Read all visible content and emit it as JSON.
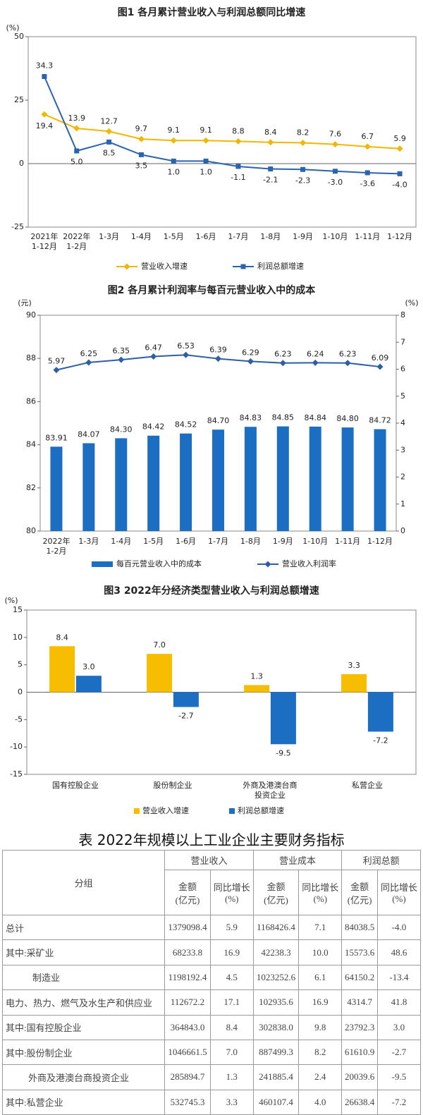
{
  "chart_data": [
    {
      "type": "line",
      "title": "图1  各月累计营业收入与利润总额同比增速",
      "ylabel": "(%)",
      "categories": [
        "2021年\n1-12月",
        "2022年\n1-2月",
        "1-3月",
        "1-4月",
        "1-5月",
        "1-6月",
        "1-7月",
        "1-8月",
        "1-9月",
        "1-10月",
        "1-11月",
        "1-12月"
      ],
      "ylim": [
        -25,
        50
      ],
      "yticks": [
        -25,
        0,
        25,
        50
      ],
      "grid": false,
      "series": [
        {
          "name": "营业收入增速",
          "type": "line",
          "color": "#f2b705",
          "values": [
            19.4,
            13.9,
            12.7,
            9.7,
            9.1,
            9.1,
            8.8,
            8.4,
            8.2,
            7.6,
            6.7,
            5.9
          ]
        },
        {
          "name": "利润总额增速",
          "type": "line",
          "color": "#2a63ae",
          "values": [
            34.3,
            5.0,
            8.5,
            3.5,
            1.0,
            1.0,
            -1.1,
            -2.1,
            -2.3,
            -3.0,
            -3.6,
            -4.0
          ],
          "value_labels": [
            "34.3",
            "5.0",
            "8.5",
            "3.5",
            "1.0",
            "1.0",
            "-1.1",
            "-2.1",
            "-2.3",
            "-3.0",
            "-3.6",
            "-4.0"
          ]
        }
      ]
    },
    {
      "type": "bar",
      "title": "图2  各月累计利润率与每百元营业收入中的成本",
      "ylabel": "(元)",
      "y2label": "(%)",
      "categories": [
        "2022年\n1-2月",
        "1-3月",
        "1-4月",
        "1-5月",
        "1-6月",
        "1-7月",
        "1-8月",
        "1-9月",
        "1-10月",
        "1-11月",
        "1-12月"
      ],
      "ylim": [
        80,
        90
      ],
      "yticks": [
        80,
        82,
        84,
        86,
        88,
        90
      ],
      "y2lim": [
        0,
        8
      ],
      "y2ticks": [
        0,
        1,
        2,
        3,
        4,
        5,
        6,
        7,
        8
      ],
      "grid": false,
      "series": [
        {
          "name": "每百元营业收入中的成本",
          "type": "bar",
          "color": "#1b6ec2",
          "values": [
            83.91,
            84.07,
            84.3,
            84.42,
            84.52,
            84.7,
            84.83,
            84.85,
            84.84,
            84.8,
            84.72
          ],
          "value_labels": [
            "83.91",
            "84.07",
            "84.30",
            "84.42",
            "84.52",
            "84.70",
            "84.83",
            "84.85",
            "84.84",
            "84.80",
            "84.72"
          ]
        },
        {
          "name": "营业收入利润率",
          "type": "line",
          "axis": "y2",
          "color": "#2d5fa6",
          "values": [
            5.97,
            6.25,
            6.35,
            6.47,
            6.53,
            6.39,
            6.29,
            6.23,
            6.24,
            6.23,
            6.09
          ]
        }
      ]
    },
    {
      "type": "bar",
      "title": "图3  2022年分经济类型营业收入与利润总额增速",
      "ylabel": "(%)",
      "categories": [
        "国有控股企业",
        "股份制企业",
        "外商及港澳台商\n投资企业",
        "私营企业"
      ],
      "ylim": [
        -15,
        15
      ],
      "yticks": [
        -15,
        -10,
        -5,
        0,
        5,
        10,
        15
      ],
      "grid": false,
      "series": [
        {
          "name": "营业收入增速",
          "type": "bar",
          "color": "#f7bd00",
          "values": [
            8.4,
            7.0,
            1.3,
            3.3
          ],
          "value_labels": [
            "8.4",
            "7.0",
            "1.3",
            "3.3"
          ]
        },
        {
          "name": "利润总额增速",
          "type": "bar",
          "color": "#1b6ec2",
          "values": [
            3.0,
            -2.7,
            -9.5,
            -7.2
          ],
          "value_labels": [
            "3.0",
            "-2.7",
            "-9.5",
            "-7.2"
          ]
        }
      ]
    }
  ],
  "table": {
    "title": "表   2022年规模以上工业企业主要财务指标",
    "group_header": "分组",
    "columns": [
      "营业收入",
      "营业成本",
      "利润总额"
    ],
    "sub_headers": [
      "金额\n(亿元)",
      "同比增长\n(%)"
    ],
    "rows": [
      [
        "总计",
        "1379098.4",
        "5.9",
        "1168426.4",
        "7.1",
        "84038.5",
        "-4.0"
      ],
      [
        "其中:采矿业",
        "68233.8",
        "16.9",
        "42238.3",
        "10.0",
        "15573.6",
        "48.6"
      ],
      [
        "制造业",
        "1198192.4",
        "4.5",
        "1023252.6",
        "6.1",
        "64150.2",
        "-13.4"
      ],
      [
        "电力、热力、燃气及水生产和供应业",
        "112672.2",
        "17.1",
        "102935.6",
        "16.9",
        "4314.7",
        "41.8"
      ],
      [
        "其中:国有控股企业",
        "364843.0",
        "8.4",
        "302838.0",
        "9.8",
        "23792.3",
        "3.0"
      ],
      [
        "其中:股份制企业",
        "1046661.5",
        "7.0",
        "887499.3",
        "8.2",
        "61610.9",
        "-2.7"
      ],
      [
        "外商及港澳台商投资企业",
        "285894.7",
        "1.3",
        "241885.4",
        "2.4",
        "20039.6",
        "-9.5"
      ],
      [
        "其中:私营企业",
        "532745.3",
        "3.3",
        "460107.4",
        "4.0",
        "26638.4",
        "-7.2"
      ]
    ]
  }
}
